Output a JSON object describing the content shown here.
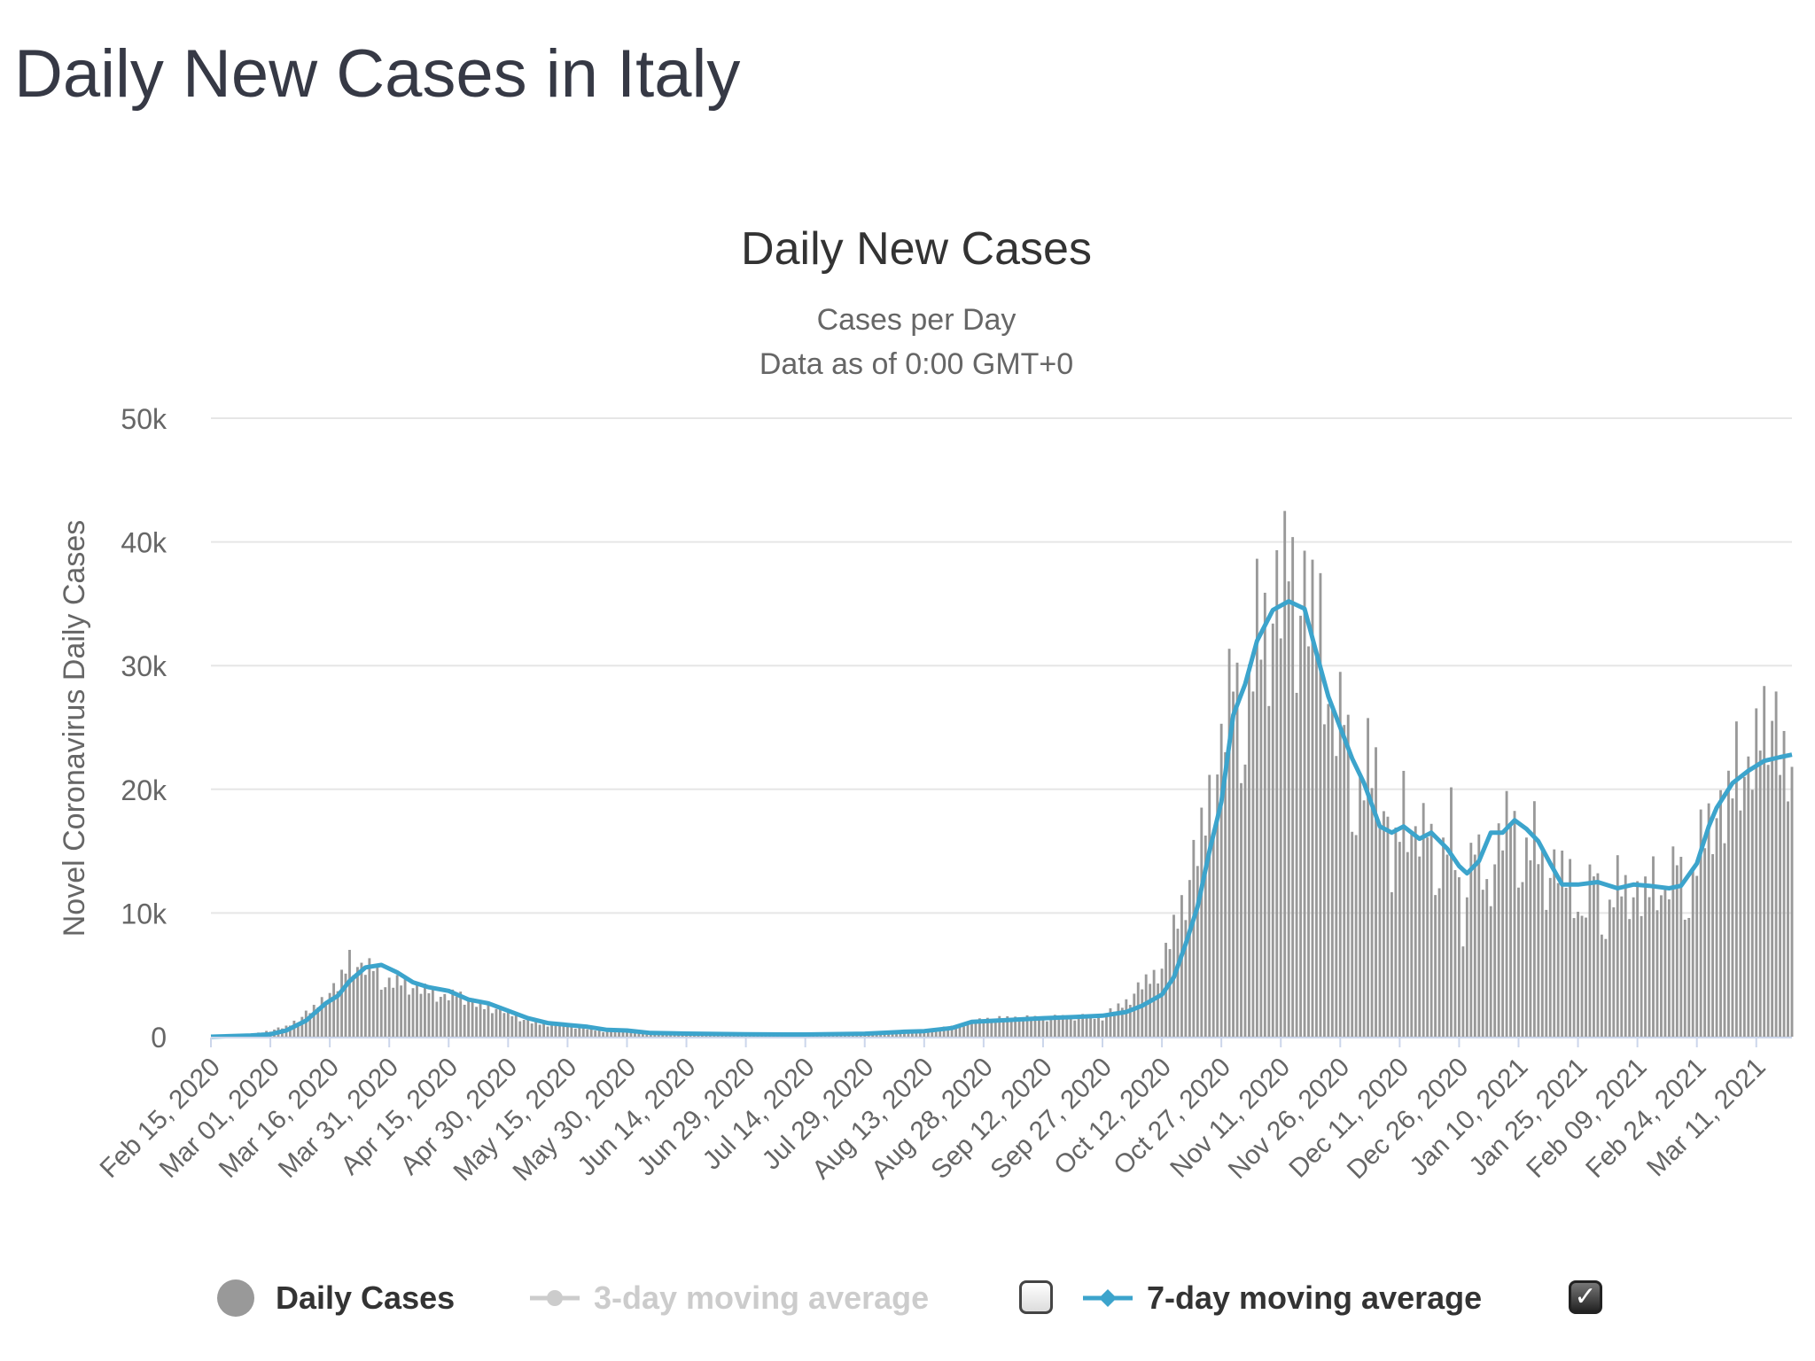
{
  "page": {
    "title": "Daily New Cases in Italy"
  },
  "legend": {
    "daily_cases": "Daily Cases",
    "avg3": "3-day moving average",
    "avg7": "7-day moving average",
    "avg3_checked": false,
    "avg7_checked": true
  },
  "colors": {
    "bars": "#999999",
    "line7": "#3ca4cc",
    "text": "#363945",
    "muted": "#cccccc"
  },
  "chart_data": {
    "type": "bar",
    "title": "Daily New Cases",
    "subtitle": [
      "Cases per Day",
      "Data as of 0:00 GMT+0"
    ],
    "ylabel": "Novel Coronavirus Daily Cases",
    "ylim": [
      0,
      50000
    ],
    "yticks": [
      0,
      10000,
      20000,
      30000,
      40000,
      50000
    ],
    "ytick_labels": [
      "0",
      "10k",
      "20k",
      "30k",
      "40k",
      "50k"
    ],
    "x_range": [
      "2020-02-15",
      "2021-03-20"
    ],
    "xticks": [
      "Feb 15, 2020",
      "Mar 01, 2020",
      "Mar 16, 2020",
      "Mar 31, 2020",
      "Apr 15, 2020",
      "Apr 30, 2020",
      "May 15, 2020",
      "May 30, 2020",
      "Jun 14, 2020",
      "Jun 29, 2020",
      "Jul 14, 2020",
      "Jul 29, 2020",
      "Aug 13, 2020",
      "Aug 28, 2020",
      "Sep 12, 2020",
      "Sep 27, 2020",
      "Oct 12, 2020",
      "Oct 27, 2020",
      "Nov 11, 2020",
      "Nov 26, 2020",
      "Dec 11, 2020",
      "Dec 26, 2020",
      "Jan 10, 2021",
      "Jan 25, 2021",
      "Feb 09, 2021",
      "Feb 24, 2021",
      "Mar 11, 2021"
    ],
    "grid": true,
    "series": [
      {
        "name": "Daily Cases",
        "type": "bar",
        "points": [
          [
            "2020-02-15",
            0
          ],
          [
            "2020-02-22",
            30
          ],
          [
            "2020-02-27",
            300
          ],
          [
            "2020-03-01",
            500
          ],
          [
            "2020-03-05",
            800
          ],
          [
            "2020-03-09",
            1600
          ],
          [
            "2020-03-12",
            2300
          ],
          [
            "2020-03-15",
            3300
          ],
          [
            "2020-03-18",
            4000
          ],
          [
            "2020-03-21",
            6500
          ],
          [
            "2020-03-24",
            5200
          ],
          [
            "2020-03-27",
            5900
          ],
          [
            "2020-03-30",
            4000
          ],
          [
            "2020-04-03",
            4600
          ],
          [
            "2020-04-07",
            3700
          ],
          [
            "2020-04-10",
            3900
          ],
          [
            "2020-04-14",
            3000
          ],
          [
            "2020-04-17",
            3600
          ],
          [
            "2020-04-21",
            2700
          ],
          [
            "2020-04-25",
            2400
          ],
          [
            "2020-04-30",
            2000
          ],
          [
            "2020-05-05",
            1200
          ],
          [
            "2020-05-10",
            1000
          ],
          [
            "2020-05-15",
            900
          ],
          [
            "2020-05-20",
            650
          ],
          [
            "2020-05-25",
            400
          ],
          [
            "2020-05-30",
            400
          ],
          [
            "2020-06-05",
            300
          ],
          [
            "2020-06-10",
            280
          ],
          [
            "2020-06-15",
            300
          ],
          [
            "2020-06-20",
            250
          ],
          [
            "2020-06-29",
            180
          ],
          [
            "2020-07-14",
            170
          ],
          [
            "2020-07-29",
            250
          ],
          [
            "2020-08-07",
            400
          ],
          [
            "2020-08-13",
            500
          ],
          [
            "2020-08-20",
            800
          ],
          [
            "2020-08-28",
            1400
          ],
          [
            "2020-09-05",
            1500
          ],
          [
            "2020-09-12",
            1500
          ],
          [
            "2020-09-20",
            1600
          ],
          [
            "2020-09-27",
            1600
          ],
          [
            "2020-10-03",
            2800
          ],
          [
            "2020-10-08",
            4500
          ],
          [
            "2020-10-12",
            5500
          ],
          [
            "2020-10-15",
            8800
          ],
          [
            "2020-10-18",
            11500
          ],
          [
            "2020-10-21",
            15000
          ],
          [
            "2020-10-24",
            19600
          ],
          [
            "2020-10-27",
            22000
          ],
          [
            "2020-10-30",
            31000
          ],
          [
            "2020-11-02",
            22000
          ],
          [
            "2020-11-05",
            34500
          ],
          [
            "2020-11-08",
            32600
          ],
          [
            "2020-11-11",
            35000
          ],
          [
            "2020-11-13",
            40900
          ],
          [
            "2020-11-15",
            33900
          ],
          [
            "2020-11-18",
            34300
          ],
          [
            "2020-11-21",
            34700
          ],
          [
            "2020-11-24",
            23000
          ],
          [
            "2020-11-27",
            28000
          ],
          [
            "2020-11-30",
            16300
          ],
          [
            "2020-12-03",
            23000
          ],
          [
            "2020-12-06",
            21000
          ],
          [
            "2020-12-09",
            12700
          ],
          [
            "2020-12-12",
            19900
          ],
          [
            "2020-12-15",
            14800
          ],
          [
            "2020-12-18",
            17900
          ],
          [
            "2020-12-21",
            12000
          ],
          [
            "2020-12-24",
            18000
          ],
          [
            "2020-12-27",
            8900
          ],
          [
            "2020-12-30",
            16000
          ],
          [
            "2021-01-02",
            11800
          ],
          [
            "2021-01-05",
            15000
          ],
          [
            "2021-01-08",
            19100
          ],
          [
            "2021-01-11",
            12500
          ],
          [
            "2021-01-14",
            17000
          ],
          [
            "2021-01-17",
            12500
          ],
          [
            "2021-01-20",
            13500
          ],
          [
            "2021-01-23",
            13300
          ],
          [
            "2021-01-26",
            8500
          ],
          [
            "2021-01-29",
            14400
          ],
          [
            "2021-02-01",
            7900
          ],
          [
            "2021-02-04",
            13100
          ],
          [
            "2021-02-07",
            11600
          ],
          [
            "2021-02-10",
            10600
          ],
          [
            "2021-02-13",
            13500
          ],
          [
            "2021-02-16",
            10400
          ],
          [
            "2021-02-19",
            15400
          ],
          [
            "2021-02-22",
            9600
          ],
          [
            "2021-02-25",
            16400
          ],
          [
            "2021-02-28",
            18000
          ],
          [
            "2021-03-03",
            17000
          ],
          [
            "2021-03-06",
            23600
          ],
          [
            "2021-03-09",
            19700
          ],
          [
            "2021-03-12",
            25700
          ],
          [
            "2021-03-14",
            26800
          ],
          [
            "2021-03-17",
            23000
          ],
          [
            "2021-03-20",
            20200
          ]
        ]
      },
      {
        "name": "7-day moving average",
        "type": "line",
        "points": [
          [
            "2020-02-15",
            0
          ],
          [
            "2020-02-25",
            100
          ],
          [
            "2020-03-01",
            200
          ],
          [
            "2020-03-05",
            500
          ],
          [
            "2020-03-10",
            1300
          ],
          [
            "2020-03-15",
            2700
          ],
          [
            "2020-03-18",
            3300
          ],
          [
            "2020-03-21",
            4500
          ],
          [
            "2020-03-25",
            5600
          ],
          [
            "2020-03-29",
            5800
          ],
          [
            "2020-04-02",
            5200
          ],
          [
            "2020-04-06",
            4400
          ],
          [
            "2020-04-10",
            4000
          ],
          [
            "2020-04-15",
            3700
          ],
          [
            "2020-04-20",
            3000
          ],
          [
            "2020-04-25",
            2700
          ],
          [
            "2020-04-30",
            2100
          ],
          [
            "2020-05-05",
            1500
          ],
          [
            "2020-05-10",
            1100
          ],
          [
            "2020-05-15",
            950
          ],
          [
            "2020-05-20",
            800
          ],
          [
            "2020-05-25",
            550
          ],
          [
            "2020-05-30",
            500
          ],
          [
            "2020-06-05",
            300
          ],
          [
            "2020-06-14",
            250
          ],
          [
            "2020-06-29",
            190
          ],
          [
            "2020-07-14",
            180
          ],
          [
            "2020-07-29",
            240
          ],
          [
            "2020-08-08",
            400
          ],
          [
            "2020-08-13",
            450
          ],
          [
            "2020-08-20",
            700
          ],
          [
            "2020-08-25",
            1200
          ],
          [
            "2020-08-31",
            1300
          ],
          [
            "2020-09-12",
            1500
          ],
          [
            "2020-09-20",
            1600
          ],
          [
            "2020-09-27",
            1700
          ],
          [
            "2020-10-03",
            2000
          ],
          [
            "2020-10-07",
            2500
          ],
          [
            "2020-10-12",
            3400
          ],
          [
            "2020-10-15",
            4800
          ],
          [
            "2020-10-18",
            7500
          ],
          [
            "2020-10-21",
            10500
          ],
          [
            "2020-10-24",
            15000
          ],
          [
            "2020-10-27",
            19000
          ],
          [
            "2020-10-30",
            26000
          ],
          [
            "2020-11-02",
            28500
          ],
          [
            "2020-11-05",
            32000
          ],
          [
            "2020-11-09",
            34500
          ],
          [
            "2020-11-13",
            35200
          ],
          [
            "2020-11-17",
            34600
          ],
          [
            "2020-11-20",
            31000
          ],
          [
            "2020-11-23",
            27500
          ],
          [
            "2020-11-26",
            25000
          ],
          [
            "2020-11-29",
            22500
          ],
          [
            "2020-12-02",
            20500
          ],
          [
            "2020-12-06",
            17000
          ],
          [
            "2020-12-09",
            16500
          ],
          [
            "2020-12-12",
            17000
          ],
          [
            "2020-12-16",
            16000
          ],
          [
            "2020-12-19",
            16500
          ],
          [
            "2020-12-23",
            15200
          ],
          [
            "2020-12-26",
            13800
          ],
          [
            "2020-12-28",
            13200
          ],
          [
            "2020-12-31",
            14200
          ],
          [
            "2021-01-03",
            16500
          ],
          [
            "2021-01-06",
            16500
          ],
          [
            "2021-01-09",
            17500
          ],
          [
            "2021-01-12",
            16800
          ],
          [
            "2021-01-15",
            15800
          ],
          [
            "2021-01-18",
            14000
          ],
          [
            "2021-01-21",
            12300
          ],
          [
            "2021-01-25",
            12300
          ],
          [
            "2021-01-30",
            12500
          ],
          [
            "2021-02-04",
            12000
          ],
          [
            "2021-02-08",
            12300
          ],
          [
            "2021-02-12",
            12200
          ],
          [
            "2021-02-17",
            12000
          ],
          [
            "2021-02-20",
            12200
          ],
          [
            "2021-02-24",
            14000
          ],
          [
            "2021-02-27",
            17000
          ],
          [
            "2021-03-01",
            18500
          ],
          [
            "2021-03-05",
            20500
          ],
          [
            "2021-03-09",
            21500
          ],
          [
            "2021-03-13",
            22300
          ],
          [
            "2021-03-17",
            22600
          ],
          [
            "2021-03-20",
            22800
          ]
        ]
      }
    ]
  }
}
